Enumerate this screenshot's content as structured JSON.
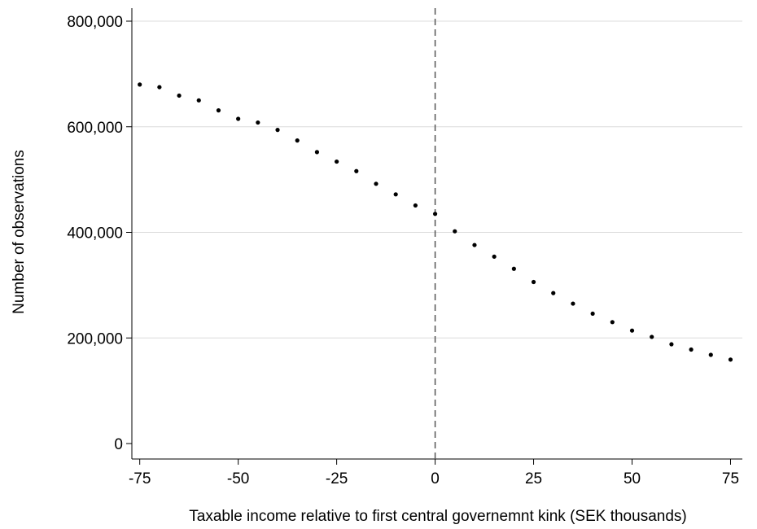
{
  "chart_data": {
    "type": "scatter",
    "title": "",
    "xlabel": "Taxable income relative to first central governemnt kink (SEK thousands)",
    "ylabel": "Number of observations",
    "xlim": [
      -77,
      78
    ],
    "ylim": [
      0,
      800000
    ],
    "xticks": [
      -75,
      -50,
      -25,
      0,
      25,
      50,
      75
    ],
    "xtick_labels": [
      "-75",
      "-50",
      "-25",
      "0",
      "25",
      "50",
      "75"
    ],
    "yticks": [
      0,
      200000,
      400000,
      600000,
      800000
    ],
    "ytick_labels": [
      "0",
      "200,000",
      "400,000",
      "600,000",
      "800,000"
    ],
    "grid": "horizontal",
    "vertical_reference_line": 0,
    "series": [
      {
        "x": [
          -75,
          -70,
          -65,
          -60,
          -55,
          -50,
          -45,
          -40,
          -35,
          -30,
          -25,
          -20,
          -15,
          -10,
          -5,
          0,
          5,
          10,
          15,
          20,
          25,
          30,
          35,
          40,
          45,
          50,
          55,
          60,
          65,
          70,
          75
        ],
        "y": [
          680000,
          675000,
          659000,
          650000,
          631000,
          615000,
          608000,
          594000,
          574000,
          552000,
          534000,
          516000,
          492000,
          472000,
          451000,
          435000,
          402000,
          376000,
          354000,
          331000,
          306000,
          285000,
          265000,
          246000,
          230000,
          214000,
          202000,
          188000,
          178000,
          168000,
          159000
        ]
      }
    ]
  }
}
